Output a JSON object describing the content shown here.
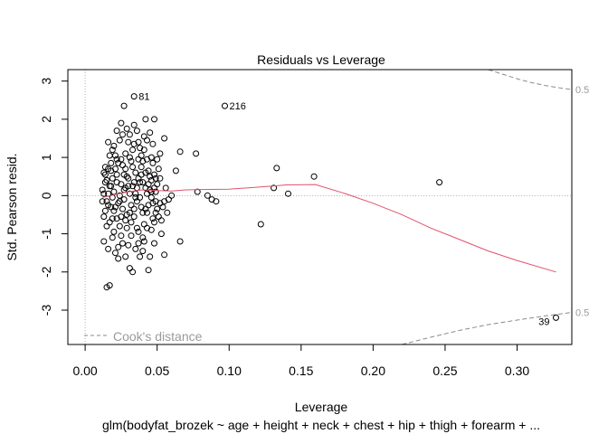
{
  "chart_data": {
    "type": "scatter",
    "title": "Residuals vs Leverage",
    "xlabel": "Leverage",
    "ylabel": "Std. Pearson resid.",
    "subtitle": "glm(bodyfat_brozek ~ age + height + neck + chest + hip + thigh + forearm +  ...",
    "xlim": [
      -0.012,
      0.338
    ],
    "ylim": [
      -3.9,
      3.3
    ],
    "x_ticks": [
      0.0,
      0.05,
      0.1,
      0.15,
      0.2,
      0.25,
      0.3
    ],
    "x_tick_labels": [
      "0.00",
      "0.05",
      "0.10",
      "0.15",
      "0.20",
      "0.25",
      "0.30"
    ],
    "y_ticks": [
      -3,
      -2,
      -1,
      0,
      1,
      2,
      3
    ],
    "y_tick_labels": [
      "-3",
      "-2",
      "-1",
      "0",
      "1",
      "2",
      "3"
    ],
    "grid": false,
    "reference_lines": {
      "x": 0,
      "y": 0
    },
    "legend": {
      "position": "bottom-left",
      "label": "Cook's distance"
    },
    "cook_contour": {
      "label": "0.5",
      "upper": [
        [
          0.28,
          3.35
        ],
        [
          0.29,
          3.18
        ],
        [
          0.3,
          3.06
        ],
        [
          0.31,
          2.96
        ],
        [
          0.32,
          2.88
        ],
        [
          0.33,
          2.82
        ],
        [
          0.338,
          2.78
        ]
      ],
      "lower": [
        [
          0.22,
          -3.95
        ],
        [
          0.24,
          -3.71
        ],
        [
          0.26,
          -3.53
        ],
        [
          0.28,
          -3.38
        ],
        [
          0.3,
          -3.26
        ],
        [
          0.32,
          -3.15
        ],
        [
          0.338,
          -3.06
        ]
      ]
    },
    "smoother": [
      [
        0.012,
        -0.05
      ],
      [
        0.02,
        0.02
      ],
      [
        0.03,
        0.1
      ],
      [
        0.04,
        0.15
      ],
      [
        0.05,
        0.13
      ],
      [
        0.06,
        0.12
      ],
      [
        0.07,
        0.15
      ],
      [
        0.08,
        0.16
      ],
      [
        0.1,
        0.17
      ],
      [
        0.12,
        0.22
      ],
      [
        0.14,
        0.28
      ],
      [
        0.16,
        0.29
      ],
      [
        0.18,
        0.06
      ],
      [
        0.2,
        -0.2
      ],
      [
        0.22,
        -0.5
      ],
      [
        0.24,
        -0.85
      ],
      [
        0.26,
        -1.15
      ],
      [
        0.28,
        -1.45
      ],
      [
        0.3,
        -1.7
      ],
      [
        0.327,
        -2.0
      ]
    ],
    "labels": [
      {
        "text": "81",
        "x": 0.034,
        "y": 2.6
      },
      {
        "text": "216",
        "x": 0.097,
        "y": 2.35
      },
      {
        "text": "39",
        "x": 0.327,
        "y": -3.2
      }
    ],
    "points": [
      [
        0.034,
        2.6
      ],
      [
        0.097,
        2.35
      ],
      [
        0.327,
        -3.2
      ],
      [
        0.246,
        0.35
      ],
      [
        0.159,
        0.5
      ],
      [
        0.133,
        0.72
      ],
      [
        0.131,
        0.2
      ],
      [
        0.141,
        0.05
      ],
      [
        0.122,
        -0.75
      ],
      [
        0.077,
        1.1
      ],
      [
        0.066,
        1.15
      ],
      [
        0.063,
        0.65
      ],
      [
        0.085,
        0.0
      ],
      [
        0.088,
        -0.1
      ],
      [
        0.091,
        -0.15
      ],
      [
        0.078,
        0.1
      ],
      [
        0.066,
        -1.2
      ],
      [
        0.055,
        1.5
      ],
      [
        0.055,
        -1.55
      ],
      [
        0.053,
        -1.0
      ],
      [
        0.048,
        2.0
      ],
      [
        0.014,
        0.75
      ],
      [
        0.016,
        0.05
      ],
      [
        0.018,
        -0.3
      ],
      [
        0.02,
        1.3
      ],
      [
        0.022,
        0.55
      ],
      [
        0.024,
        -0.8
      ],
      [
        0.026,
        1.6
      ],
      [
        0.028,
        0.2
      ],
      [
        0.03,
        -1.3
      ],
      [
        0.032,
        0.9
      ],
      [
        0.034,
        -0.55
      ],
      [
        0.036,
        1.7
      ],
      [
        0.038,
        0.35
      ],
      [
        0.04,
        -1.1
      ],
      [
        0.042,
        0.6
      ],
      [
        0.044,
        -0.25
      ],
      [
        0.046,
        1.0
      ],
      [
        0.048,
        -0.7
      ],
      [
        0.05,
        0.3
      ],
      [
        0.052,
        -0.2
      ],
      [
        0.013,
        -1.2
      ],
      [
        0.015,
        0.4
      ],
      [
        0.017,
        1.05
      ],
      [
        0.019,
        -0.6
      ],
      [
        0.021,
        -1.5
      ],
      [
        0.023,
        0.85
      ],
      [
        0.025,
        1.9
      ],
      [
        0.027,
        -0.1
      ],
      [
        0.029,
        0.5
      ],
      [
        0.031,
        -1.9
      ],
      [
        0.033,
        1.2
      ],
      [
        0.035,
        0.05
      ],
      [
        0.037,
        -0.95
      ],
      [
        0.039,
        0.75
      ],
      [
        0.041,
        1.55
      ],
      [
        0.043,
        -0.45
      ],
      [
        0.045,
        0.15
      ],
      [
        0.047,
        1.35
      ],
      [
        0.049,
        -0.15
      ],
      [
        0.051,
        -0.55
      ],
      [
        0.012,
        0.15
      ],
      [
        0.014,
        -0.4
      ],
      [
        0.016,
        1.4
      ],
      [
        0.018,
        0.25
      ],
      [
        0.02,
        -0.95
      ],
      [
        0.022,
        1.7
      ],
      [
        0.024,
        0.0
      ],
      [
        0.026,
        -1.25
      ],
      [
        0.028,
        1.1
      ],
      [
        0.03,
        0.45
      ],
      [
        0.032,
        -0.7
      ],
      [
        0.034,
        1.85
      ],
      [
        0.036,
        -0.15
      ],
      [
        0.038,
        -1.6
      ],
      [
        0.04,
        0.9
      ],
      [
        0.042,
        2.0
      ],
      [
        0.044,
        0.3
      ],
      [
        0.046,
        -0.9
      ],
      [
        0.048,
        0.55
      ],
      [
        0.05,
        -0.35
      ],
      [
        0.015,
        -2.4
      ],
      [
        0.017,
        -2.35
      ],
      [
        0.019,
        -0.05
      ],
      [
        0.021,
        0.7
      ],
      [
        0.023,
        -1.35
      ],
      [
        0.025,
        0.3
      ],
      [
        0.027,
        2.35
      ],
      [
        0.029,
        -0.5
      ],
      [
        0.031,
        1.0
      ],
      [
        0.033,
        -2.0
      ],
      [
        0.035,
        0.6
      ],
      [
        0.037,
        1.4
      ],
      [
        0.039,
        -0.3
      ],
      [
        0.041,
        -1.2
      ],
      [
        0.043,
        0.95
      ],
      [
        0.045,
        1.65
      ],
      [
        0.047,
        -0.6
      ],
      [
        0.049,
        0.1
      ],
      [
        0.051,
        0.7
      ],
      [
        0.056,
        0.2
      ],
      [
        0.013,
        0.6
      ],
      [
        0.015,
        -0.8
      ],
      [
        0.017,
        0.25
      ],
      [
        0.019,
        1.2
      ],
      [
        0.021,
        -0.3
      ],
      [
        0.023,
        -1.65
      ],
      [
        0.025,
        0.95
      ],
      [
        0.027,
        0.15
      ],
      [
        0.029,
        -0.85
      ],
      [
        0.031,
        1.6
      ],
      [
        0.033,
        0.25
      ],
      [
        0.035,
        -1.4
      ],
      [
        0.037,
        0.45
      ],
      [
        0.039,
        1.05
      ],
      [
        0.041,
        -0.75
      ],
      [
        0.043,
        0.05
      ],
      [
        0.045,
        -1.6
      ],
      [
        0.047,
        0.85
      ],
      [
        0.049,
        -0.45
      ],
      [
        0.052,
        0.45
      ],
      [
        0.012,
        -0.15
      ],
      [
        0.014,
        0.35
      ],
      [
        0.016,
        -1.4
      ],
      [
        0.018,
        0.85
      ],
      [
        0.02,
        0.1
      ],
      [
        0.022,
        -0.6
      ],
      [
        0.024,
        1.45
      ],
      [
        0.026,
        -0.35
      ],
      [
        0.028,
        0.7
      ],
      [
        0.03,
        1.4
      ],
      [
        0.032,
        -0.25
      ],
      [
        0.034,
        0.35
      ],
      [
        0.036,
        -0.85
      ],
      [
        0.038,
        1.25
      ],
      [
        0.04,
        -0.45
      ],
      [
        0.042,
        0.2
      ],
      [
        0.044,
        -1.95
      ],
      [
        0.046,
        0.4
      ],
      [
        0.048,
        -1.25
      ],
      [
        0.054,
        -0.3
      ],
      [
        0.013,
        0.05
      ],
      [
        0.015,
        -0.15
      ],
      [
        0.017,
        -0.7
      ],
      [
        0.019,
        0.45
      ],
      [
        0.021,
        1.05
      ],
      [
        0.023,
        -0.2
      ],
      [
        0.025,
        -1.05
      ],
      [
        0.027,
        0.55
      ],
      [
        0.029,
        1.75
      ],
      [
        0.031,
        -0.45
      ],
      [
        0.033,
        0.75
      ],
      [
        0.035,
        -0.05
      ],
      [
        0.037,
        -1.25
      ],
      [
        0.039,
        0.55
      ],
      [
        0.041,
        1.2
      ],
      [
        0.043,
        -0.85
      ],
      [
        0.045,
        0.5
      ],
      [
        0.047,
        -0.2
      ],
      [
        0.05,
        0.95
      ],
      [
        0.058,
        -0.1
      ],
      [
        0.014,
        0.55
      ],
      [
        0.016,
        -0.25
      ],
      [
        0.018,
        0.65
      ],
      [
        0.02,
        -0.4
      ],
      [
        0.022,
        0.35
      ],
      [
        0.024,
        -0.15
      ],
      [
        0.026,
        0.8
      ],
      [
        0.028,
        -0.65
      ],
      [
        0.03,
        0.25
      ],
      [
        0.032,
        -1.05
      ],
      [
        0.034,
        1.35
      ],
      [
        0.036,
        0.2
      ],
      [
        0.038,
        -0.05
      ],
      [
        0.04,
        0.35
      ],
      [
        0.042,
        -0.35
      ],
      [
        0.044,
        0.65
      ],
      [
        0.046,
        -0.05
      ],
      [
        0.048,
        0.2
      ],
      [
        0.053,
        -0.65
      ],
      [
        0.06,
        0.0
      ],
      [
        0.013,
        -0.55
      ],
      [
        0.016,
        0.7
      ],
      [
        0.019,
        -1.1
      ],
      [
        0.022,
        0.95
      ],
      [
        0.025,
        -0.55
      ],
      [
        0.028,
        -1.6
      ],
      [
        0.031,
        0.05
      ],
      [
        0.034,
        -0.35
      ],
      [
        0.037,
        0.95
      ],
      [
        0.04,
        -1.45
      ],
      [
        0.043,
        1.45
      ],
      [
        0.046,
        0.1
      ],
      [
        0.049,
        0.45
      ],
      [
        0.052,
        1.1
      ],
      [
        0.055,
        -0.15
      ],
      [
        0.057,
        -0.45
      ]
    ]
  }
}
